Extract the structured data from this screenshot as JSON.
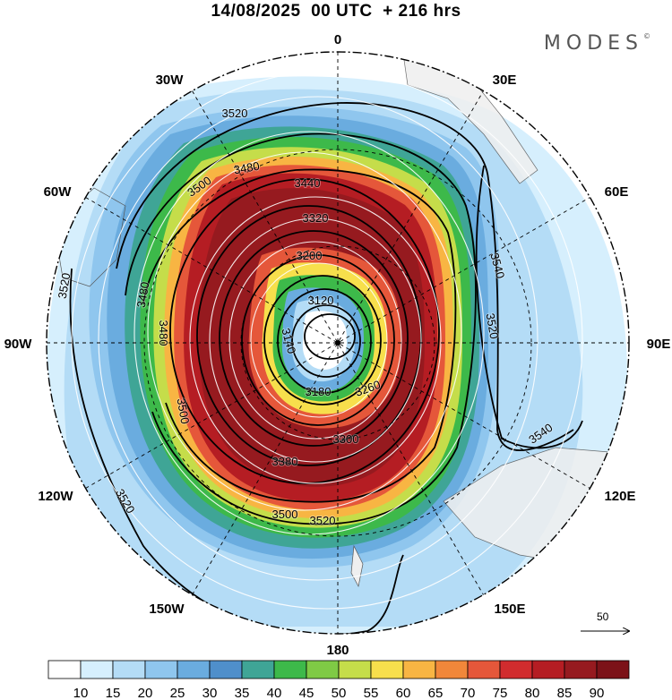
{
  "header": {
    "title": "14/08/2025  00 UTC  + 216 hrs",
    "brand": "MODES",
    "brand_mark": "©"
  },
  "map": {
    "projection": "south-polar-stereographic",
    "longitude_labels": [
      {
        "key": "0",
        "text": "0"
      },
      {
        "key": "30E",
        "text": "30E"
      },
      {
        "key": "60E",
        "text": "60E"
      },
      {
        "key": "90E",
        "text": "90E"
      },
      {
        "key": "120E",
        "text": "120E"
      },
      {
        "key": "150E",
        "text": "150E"
      },
      {
        "key": "180",
        "text": "180"
      },
      {
        "key": "150W",
        "text": "150W"
      },
      {
        "key": "120W",
        "text": "120W"
      },
      {
        "key": "90W",
        "text": "90W"
      },
      {
        "key": "60W",
        "text": "60W"
      },
      {
        "key": "30W",
        "text": "30W"
      }
    ],
    "contour_labels": [
      "3520",
      "3480",
      "3500",
      "3440",
      "3320",
      "3200",
      "3120",
      "3140",
      "3180",
      "3260",
      "3300",
      "3380",
      "3540",
      "3520",
      "3480",
      "3500",
      "3520",
      "3540",
      "3500",
      "3520",
      "3480",
      "3520"
    ],
    "wind_vector_reference": "50"
  },
  "colorbar": {
    "levels": [
      "10",
      "15",
      "20",
      "25",
      "30",
      "35",
      "40",
      "45",
      "50",
      "55",
      "60",
      "65",
      "70",
      "75",
      "80",
      "85",
      "90"
    ],
    "colors": [
      "#ffffff",
      "#d6effd",
      "#b4dcf6",
      "#8fc6ee",
      "#6aacdf",
      "#4f8fcb",
      "#3fa596",
      "#3db94a",
      "#7fca45",
      "#c5dd4a",
      "#f7df4c",
      "#f8b543",
      "#f1873a",
      "#e5573a",
      "#d12c2e",
      "#b51d23",
      "#961a1f",
      "#7c1218"
    ]
  },
  "colors": {
    "land": "#efefef",
    "coast": "#555555"
  }
}
